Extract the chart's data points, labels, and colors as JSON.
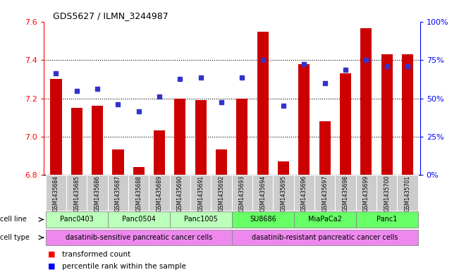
{
  "title": "GDS5627 / ILMN_3244987",
  "samples": [
    "GSM1435684",
    "GSM1435685",
    "GSM1435686",
    "GSM1435687",
    "GSM1435688",
    "GSM1435689",
    "GSM1435690",
    "GSM1435691",
    "GSM1435692",
    "GSM1435693",
    "GSM1435694",
    "GSM1435695",
    "GSM1435696",
    "GSM1435697",
    "GSM1435698",
    "GSM1435699",
    "GSM1435700",
    "GSM1435701"
  ],
  "bar_values": [
    7.3,
    7.15,
    7.16,
    6.93,
    6.84,
    7.03,
    7.2,
    7.19,
    6.93,
    7.2,
    7.55,
    6.87,
    7.38,
    7.08,
    7.33,
    7.57,
    7.43,
    7.43
  ],
  "dot_values": [
    7.33,
    7.24,
    7.25,
    7.17,
    7.13,
    7.21,
    7.3,
    7.31,
    7.18,
    7.31,
    7.4,
    7.16,
    7.38,
    7.28,
    7.35,
    7.4,
    7.37,
    7.37
  ],
  "ylim_left": [
    6.8,
    7.6
  ],
  "ylim_right": [
    0,
    100
  ],
  "yticks_left": [
    6.8,
    7.0,
    7.2,
    7.4,
    7.6
  ],
  "yticks_right": [
    0,
    25,
    50,
    75,
    100
  ],
  "ytick_labels_right": [
    "0%",
    "25%",
    "50%",
    "75%",
    "100%"
  ],
  "bar_color": "#cc0000",
  "dot_color": "#3333cc",
  "bar_bottom": 6.8,
  "cell_lines": [
    {
      "label": "Panc0403",
      "start": 0,
      "end": 3,
      "color": "#bbffbb"
    },
    {
      "label": "Panc0504",
      "start": 3,
      "end": 6,
      "color": "#bbffbb"
    },
    {
      "label": "Panc1005",
      "start": 6,
      "end": 9,
      "color": "#bbffbb"
    },
    {
      "label": "SU8686",
      "start": 9,
      "end": 12,
      "color": "#66ff66"
    },
    {
      "label": "MiaPaCa2",
      "start": 12,
      "end": 15,
      "color": "#66ff66"
    },
    {
      "label": "Panc1",
      "start": 15,
      "end": 18,
      "color": "#66ff66"
    }
  ],
  "cell_types": [
    {
      "label": "dasatinib-sensitive pancreatic cancer cells",
      "start": 0,
      "end": 9,
      "color": "#ee88ee"
    },
    {
      "label": "dasatinib-resistant pancreatic cancer cells",
      "start": 9,
      "end": 18,
      "color": "#ee88ee"
    }
  ],
  "sample_bg_color": "#cccccc",
  "gridline_color": "black",
  "gridline_style": "dotted",
  "gridline_lw": 0.8,
  "gridline_y": [
    7.0,
    7.2,
    7.4
  ],
  "bar_width": 0.55
}
